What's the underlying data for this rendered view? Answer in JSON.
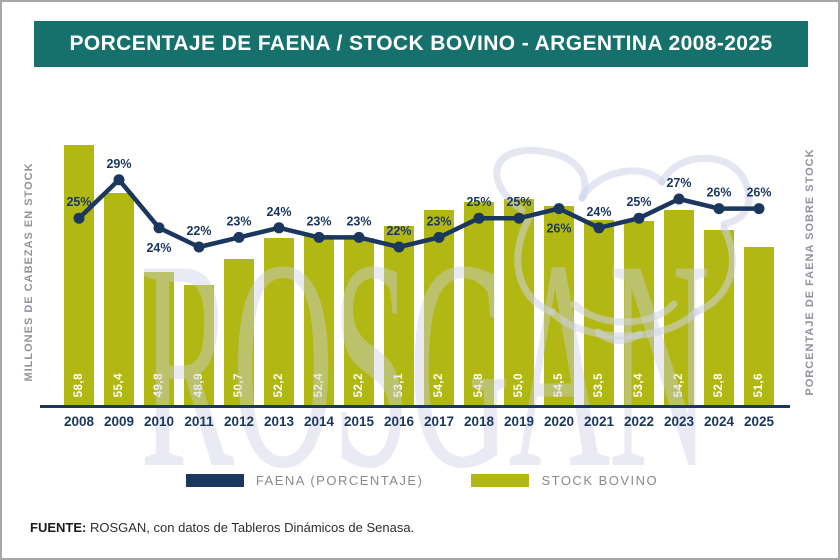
{
  "header": {
    "title": "PORCENTAJE DE FAENA / STOCK BOVINO - ARGENTINA 2008-2025",
    "bg_color": "#16716c"
  },
  "axes": {
    "left_label": "MILLONES DE CABEZAS EN STOCK",
    "right_label": "PORCENTAJE DE FAENA SOBRE STOCK"
  },
  "watermark": {
    "text": "ROSGAN",
    "bull_icon": "bull-head-outline"
  },
  "legend": [
    {
      "label": "FAENA (PORCENTAJE)",
      "color": "#1b375e"
    },
    {
      "label": "STOCK BOVINO",
      "color": "#b2b813"
    }
  ],
  "footer": {
    "prefix": "FUENTE:",
    "text": " ROSGAN, con datos de Tableros Dinámicos de Senasa."
  },
  "chart_data": {
    "type": "bar",
    "subtype": "bar+line combo",
    "title": "PORCENTAJE DE FAENA / STOCK BOVINO - ARGENTINA 2008-2025",
    "categories": [
      "2008",
      "2009",
      "2010",
      "2011",
      "2012",
      "2013",
      "2014",
      "2015",
      "2016",
      "2017",
      "2018",
      "2019",
      "2020",
      "2021",
      "2022",
      "2023",
      "2024",
      "2025"
    ],
    "series": [
      {
        "name": "STOCK BOVINO",
        "render": "bar",
        "unit": "millones de cabezas",
        "color": "#b2b813",
        "values": [
          58.8,
          55.4,
          49.8,
          48.9,
          50.7,
          52.2,
          52.4,
          52.2,
          53.1,
          54.2,
          54.8,
          55.0,
          54.5,
          53.5,
          53.4,
          54.2,
          52.8,
          51.6
        ],
        "labels": [
          "58,8",
          "55,4",
          "49,8",
          "48,9",
          "50,7",
          "52,2",
          "52,4",
          "52,2",
          "53,1",
          "54,2",
          "54,8",
          "55,0",
          "54,5",
          "53,5",
          "53,4",
          "54,2",
          "52,8",
          "51,6"
        ]
      },
      {
        "name": "FAENA (PORCENTAJE)",
        "render": "line",
        "unit": "%",
        "color": "#1b375e",
        "values": [
          25,
          29,
          24,
          22,
          23,
          24,
          23,
          23,
          22,
          23,
          25,
          25,
          26,
          24,
          25,
          27,
          26,
          26
        ],
        "labels": [
          "25%",
          "29%",
          "24%",
          "22%",
          "23%",
          "24%",
          "23%",
          "23%",
          "22%",
          "23%",
          "25%",
          "25%",
          "26%",
          "24%",
          "25%",
          "27%",
          "26%",
          "26%"
        ]
      }
    ],
    "point_label_below_categories": [
      "2010",
      "2020"
    ],
    "ylabel_left": "MILLONES DE CABEZAS EN STOCK",
    "ylabel_right": "PORCENTAJE DE FAENA SOBRE STOCK",
    "grid": false,
    "legend_position": "bottom"
  }
}
